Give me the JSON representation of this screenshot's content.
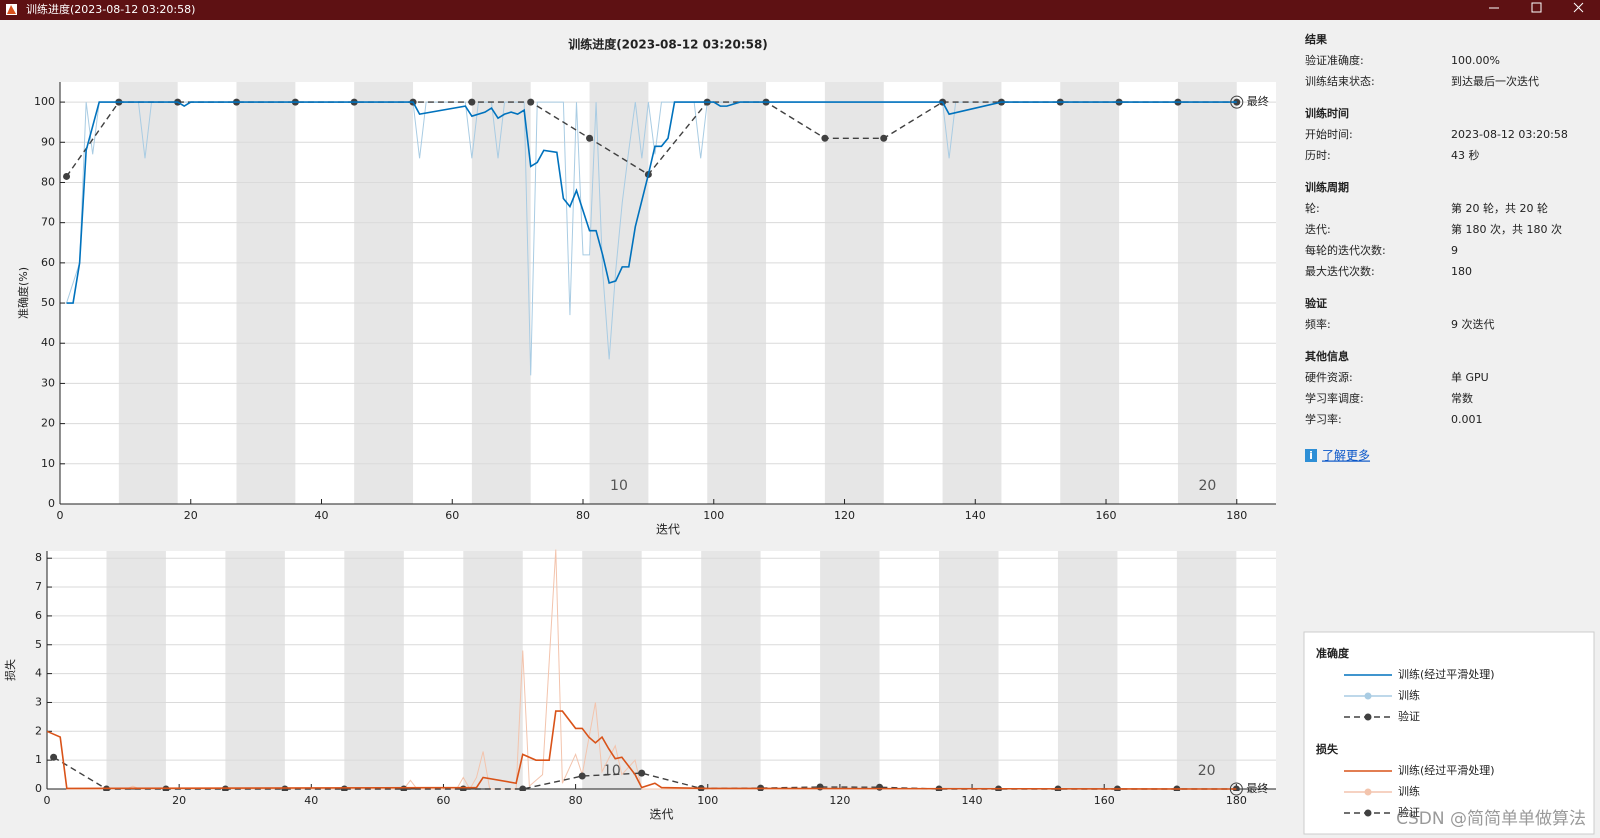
{
  "window": {
    "title": "训练进度(2023-08-12 03:20:58)"
  },
  "chart_data": [
    {
      "type": "line",
      "title": "训练进度(2023-08-12 03:20:58)",
      "xlabel": "迭代",
      "ylabel": "准确度(%)",
      "legend_title": "准确度",
      "xlim": [
        0,
        186
      ],
      "ylim": [
        0,
        105
      ],
      "xticks": [
        0,
        20,
        40,
        60,
        80,
        100,
        120,
        140,
        160,
        180
      ],
      "yticks": [
        0,
        10,
        20,
        30,
        40,
        50,
        60,
        70,
        80,
        90,
        100
      ],
      "grid": true,
      "epoch_labels": [
        10,
        20
      ],
      "final_label": "最终",
      "series": [
        {
          "name": "训练(经过平滑处理)",
          "color": "#0072bd",
          "line_style": "solid",
          "line_width": 1.6,
          "x": [
            1,
            2,
            3,
            4,
            6,
            18,
            19,
            20,
            54,
            55,
            62,
            63,
            65,
            66,
            67,
            68,
            69,
            70,
            71,
            72,
            73,
            74,
            76,
            77,
            78,
            79,
            81,
            82,
            83,
            84,
            85,
            86,
            87,
            88,
            90,
            91,
            92,
            93,
            94,
            100,
            101,
            102,
            104,
            135,
            136,
            144,
            180
          ],
          "values": [
            50,
            50,
            60,
            88,
            100,
            100,
            99,
            100,
            100,
            97,
            99,
            96.5,
            97.5,
            98.5,
            96,
            97,
            97.5,
            97,
            98,
            84,
            85,
            88,
            87.5,
            76,
            74,
            78,
            68,
            68,
            62,
            55,
            55.5,
            59,
            59,
            69,
            82,
            89,
            89,
            91,
            100,
            100,
            99,
            99,
            100,
            100,
            97,
            100,
            100
          ]
        },
        {
          "name": "训练",
          "color": "#a9cce3",
          "line_style": "solid",
          "line_width": 1,
          "x": [
            1,
            3,
            4,
            5,
            6,
            12,
            13,
            14,
            54,
            55,
            56,
            62,
            63,
            64,
            66,
            67,
            68,
            71,
            72,
            73,
            77,
            78,
            79,
            80,
            81,
            82,
            83,
            84,
            85,
            86,
            87,
            88,
            89,
            90,
            91,
            92,
            97,
            98,
            99,
            135,
            136,
            137,
            180
          ],
          "values": [
            50,
            60,
            100,
            87,
            100,
            100,
            86,
            100,
            100,
            86,
            100,
            100,
            86,
            100,
            100,
            86,
            100,
            100,
            32,
            100,
            100,
            47,
            100,
            62,
            62,
            100,
            58,
            36,
            58,
            75,
            88,
            100,
            86,
            100,
            87,
            100,
            100,
            86,
            100,
            100,
            86,
            100,
            100
          ]
        },
        {
          "name": "验证",
          "color": "#404040",
          "line_style": "dashed",
          "marker": "circle",
          "line_width": 1.4,
          "x": [
            1,
            9,
            18,
            27,
            36,
            45,
            54,
            63,
            72,
            81,
            90,
            99,
            108,
            117,
            126,
            135,
            144,
            153,
            162,
            171,
            180
          ],
          "values": [
            81.5,
            100,
            100,
            100,
            100,
            100,
            100,
            100,
            100,
            91,
            82,
            100,
            100,
            91,
            91,
            100,
            100,
            100,
            100,
            100,
            100
          ]
        }
      ]
    },
    {
      "type": "line",
      "xlabel": "迭代",
      "ylabel": "损失",
      "legend_title": "损失",
      "xlim": [
        0,
        186
      ],
      "ylim": [
        0,
        8.25
      ],
      "xticks": [
        0,
        20,
        40,
        60,
        80,
        100,
        120,
        140,
        160,
        180
      ],
      "yticks": [
        0,
        1,
        2,
        3,
        4,
        5,
        6,
        7,
        8
      ],
      "grid": true,
      "epoch_labels": [
        10,
        20
      ],
      "final_label": "最终",
      "series": [
        {
          "name": "训练(经过平滑处理)",
          "color": "#d95319",
          "line_style": "solid",
          "line_width": 1.6,
          "x": [
            0,
            1,
            2,
            3,
            65,
            66,
            71,
            72,
            74,
            76,
            77,
            78,
            80,
            81,
            82,
            83,
            84,
            85,
            86,
            87,
            89,
            90,
            92,
            93,
            100,
            180
          ],
          "values": [
            2,
            1.9,
            1.8,
            0.02,
            0.05,
            0.4,
            0.2,
            1.2,
            1,
            1,
            2.7,
            2.7,
            2.1,
            2.1,
            1.8,
            1.6,
            1.8,
            1.4,
            1.05,
            1.1,
            0.5,
            0.05,
            0.2,
            0.05,
            0.02,
            0
          ]
        },
        {
          "name": "训练",
          "color": "#f3c4ad",
          "line_style": "solid",
          "line_width": 1,
          "x": [
            0,
            2,
            3,
            12,
            13,
            14,
            54,
            55,
            56,
            62,
            63,
            64,
            65,
            66,
            67,
            71,
            72,
            73,
            75,
            77,
            78,
            80,
            81,
            83,
            84,
            86,
            87,
            89,
            90,
            180
          ],
          "values": [
            2,
            1.8,
            0,
            0,
            0.1,
            0,
            0,
            0.3,
            0,
            0,
            0.4,
            0,
            0.4,
            1.3,
            0,
            0,
            4.8,
            0.1,
            0.5,
            8.3,
            0.2,
            1.2,
            0.5,
            3,
            0.6,
            1.5,
            0.5,
            1,
            0,
            0
          ]
        },
        {
          "name": "验证",
          "color": "#404040",
          "line_style": "dashed",
          "marker": "circle",
          "line_width": 1.4,
          "x": [
            1,
            9,
            18,
            27,
            36,
            45,
            54,
            63,
            72,
            81,
            90,
            99,
            108,
            117,
            126,
            135,
            144,
            153,
            162,
            171,
            180
          ],
          "values": [
            1.1,
            0,
            0,
            0,
            0,
            0,
            0,
            0,
            0,
            0.45,
            0.55,
            0.02,
            0.03,
            0.07,
            0.06,
            0,
            0,
            0,
            0,
            0,
            0
          ]
        }
      ]
    }
  ],
  "panel": [
    {
      "title": "结果",
      "items": [
        {
          "label": "验证准确度:",
          "value": "100.00%"
        },
        {
          "label": "训练结束状态:",
          "value": "到达最后一次迭代"
        }
      ]
    },
    {
      "title": "训练时间",
      "items": [
        {
          "label": "开始时间:",
          "value": "2023-08-12 03:20:58"
        },
        {
          "label": "历时:",
          "value": "43 秒"
        }
      ]
    },
    {
      "title": "训练周期",
      "items": [
        {
          "label": "轮:",
          "value": "第 20 轮，共 20 轮"
        },
        {
          "label": "迭代:",
          "value": "第 180 次，共 180 次"
        },
        {
          "label": "每轮的迭代次数:",
          "value": "9"
        },
        {
          "label": "最大迭代次数:",
          "value": "180"
        }
      ]
    },
    {
      "title": "验证",
      "items": [
        {
          "label": "频率:",
          "value": "9 次迭代"
        }
      ]
    },
    {
      "title": "其他信息",
      "items": [
        {
          "label": "硬件资源:",
          "value": "单 GPU"
        },
        {
          "label": "学习率调度:",
          "value": "常数"
        },
        {
          "label": "学习率:",
          "value": "0.001"
        }
      ]
    }
  ],
  "link": "了解更多",
  "watermark": "CSDN @简简单单做算法"
}
